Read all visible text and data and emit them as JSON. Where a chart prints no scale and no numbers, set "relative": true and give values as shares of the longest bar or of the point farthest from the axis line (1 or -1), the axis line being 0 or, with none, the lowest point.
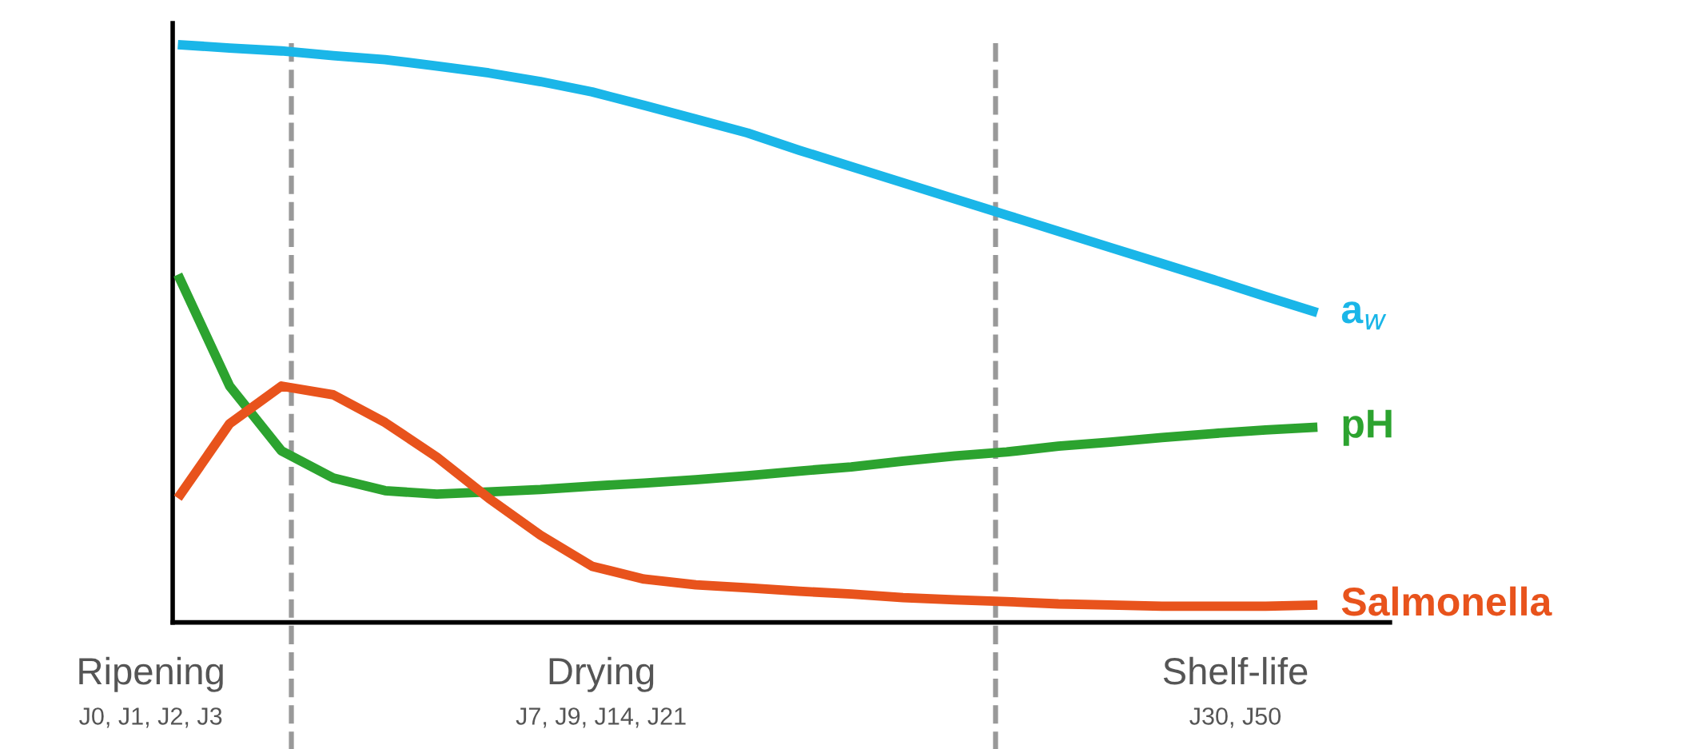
{
  "chart_data": {
    "type": "line",
    "relative": true,
    "legend": false,
    "marker": "none",
    "line_style": "solid",
    "categories": [
      null,
      null,
      null,
      null,
      null,
      null,
      null,
      null,
      null,
      null,
      null,
      null,
      null,
      null,
      null,
      null,
      null,
      null,
      null,
      null,
      null,
      null,
      null
    ],
    "series": [
      {
        "name": "a$_{w}$",
        "color": "#1ab6e8",
        "values": [
          1.0,
          0.994,
          0.989,
          0.981,
          0.974,
          0.963,
          0.951,
          0.936,
          0.918,
          0.895,
          0.871,
          0.847,
          0.817,
          0.789,
          0.761,
          0.733,
          0.705,
          0.677,
          0.649,
          0.621,
          0.593,
          0.564,
          0.536
        ]
      },
      {
        "name": "pH",
        "color": "#2ca32f",
        "values": [
          0.602,
          0.409,
          0.297,
          0.25,
          0.228,
          0.222,
          0.226,
          0.23,
          0.236,
          0.241,
          0.247,
          0.254,
          0.262,
          0.269,
          0.279,
          0.288,
          0.295,
          0.305,
          0.312,
          0.32,
          0.327,
          0.333,
          0.338
        ]
      },
      {
        "name": "Salmonella",
        "color": "#e8531c",
        "values": [
          0.215,
          0.344,
          0.409,
          0.394,
          0.346,
          0.286,
          0.215,
          0.151,
          0.097,
          0.075,
          0.065,
          0.06,
          0.054,
          0.049,
          0.043,
          0.039,
          0.036,
          0.032,
          0.03,
          0.028,
          0.028,
          0.028,
          0.03
        ]
      }
    ],
    "annotations": [
      "Ripening",
      "J0, J1, J2, J3",
      "Drying",
      "J7, J9, J14, J21",
      "Shelf-life",
      "J30, J50"
    ]
  }
}
